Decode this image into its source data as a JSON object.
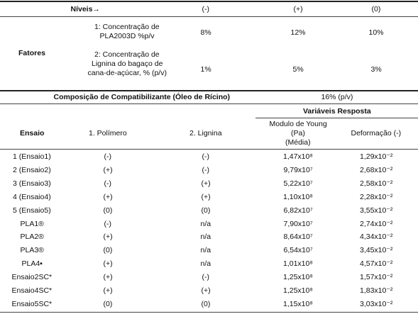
{
  "levels_header": {
    "label": "Níveis→",
    "levels": [
      "(-)",
      "(+)",
      "(0)"
    ]
  },
  "factors_label": "Fatores",
  "factors": [
    {
      "label": [
        "1: Concentração de",
        "PLA2003D %p/v"
      ],
      "values": [
        "8%",
        "12%",
        "10%"
      ]
    },
    {
      "label": [
        "2: Concentração de",
        "Lignina do bagaço de",
        "cana-de-açúcar, % (p/v)"
      ],
      "values": [
        "1%",
        "5%",
        "3%"
      ]
    }
  ],
  "compatibilizer": {
    "label": "Composição de Compatibilizante (Óleo de Rícino)",
    "value": "16% (p/v)"
  },
  "response_header": "Variáveis Resposta",
  "columns": [
    [
      "Ensaio"
    ],
    [
      "1. Polímero"
    ],
    [
      "2. Lignina"
    ],
    [
      "Modulo de Young",
      "(Pa)",
      "(Média)"
    ],
    [
      "Deformação (-)"
    ]
  ],
  "rows": [
    [
      "1 (Ensaio1)",
      "(-)",
      "(-)",
      "1,47x10⁸",
      "1,29x10⁻²"
    ],
    [
      "2 (Ensaio2)",
      "(+)",
      "(-)",
      "9,79x10⁷",
      "2,68x10⁻²"
    ],
    [
      "3 (Ensaio3)",
      "(-)",
      "(+)",
      "5,22x10⁷",
      "2,58x10⁻²"
    ],
    [
      "4 (Ensaio4)",
      "(+)",
      "(+)",
      "1,10x10⁸",
      "2,28x10⁻²"
    ],
    [
      "5 (Ensaio5)",
      "(0)",
      "(0)",
      "6,82x10⁷",
      "3,55x10⁻²"
    ],
    [
      "PLA1®",
      "(-)",
      "n/a",
      "7,90x10⁷",
      "2,74x10⁻²"
    ],
    [
      "PLA2®",
      "(+)",
      "n/a",
      "8,64x10⁷",
      "4,34x10⁻²"
    ],
    [
      "PLA3®",
      "(0)",
      "n/a",
      "6,54x10⁷",
      "3,45x10⁻²"
    ],
    [
      "PLA4▪",
      "(+)",
      "n/a",
      "1,01x10⁸",
      "4,57x10⁻²"
    ],
    [
      "Ensaio2SC*",
      "(+)",
      "(-)",
      "1,25x10⁸",
      "1,57x10⁻²"
    ],
    [
      "Ensaio4SC*",
      "(+)",
      "(+)",
      "1,25x10⁸",
      "1,83x10⁻²"
    ],
    [
      "Ensaio5SC*",
      "(0)",
      "(0)",
      "1,15x10⁸",
      "3,03x10⁻²"
    ]
  ]
}
